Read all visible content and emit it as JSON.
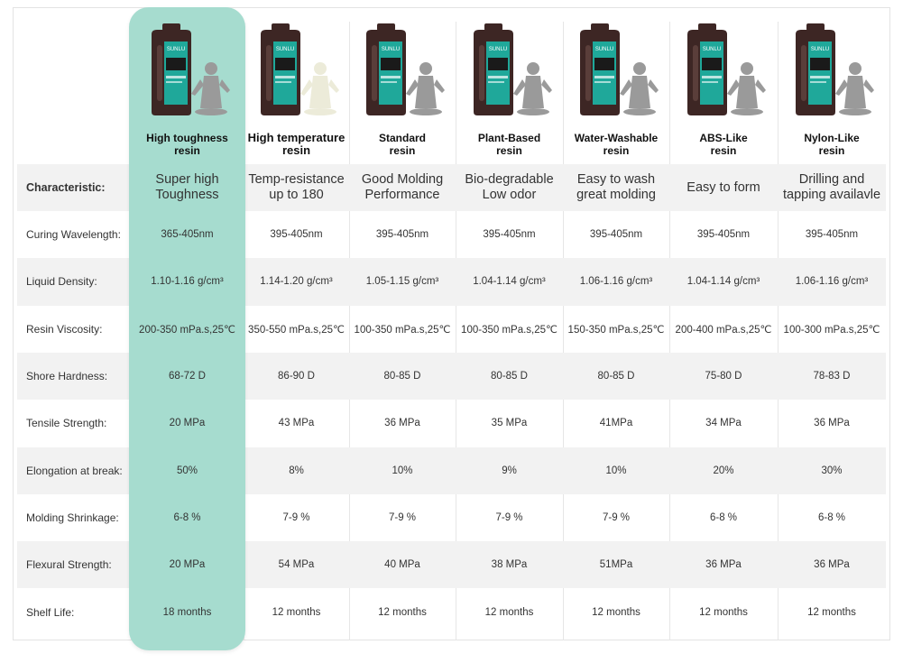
{
  "products": [
    {
      "name": "High toughness\nresin",
      "characteristic": "Super high\nToughness",
      "highlighted": true
    },
    {
      "name": "High temperature\nresin",
      "characteristic": "Temp-resistance\nup to 180"
    },
    {
      "name": "Standard\nresin",
      "characteristic": "Good Molding\nPerformance"
    },
    {
      "name": "Plant-Based\nresin",
      "characteristic": "Bio-degradable\nLow odor"
    },
    {
      "name": "Water-Washable\nresin",
      "characteristic": "Easy to wash\ngreat molding"
    },
    {
      "name": "ABS-Like\nresin",
      "characteristic": "Easy to form"
    },
    {
      "name": "Nylon-Like\nresin",
      "characteristic": "Drilling and\ntapping availavle"
    }
  ],
  "characteristic_label": "Characteristic:",
  "bottle_brand": "SUNLU",
  "rows": [
    {
      "label": "Curing Wavelength:",
      "values": [
        "365-405nm",
        "395-405nm",
        "395-405nm",
        "395-405nm",
        "395-405nm",
        "395-405nm",
        "395-405nm"
      ]
    },
    {
      "label": "Liquid Density:",
      "values": [
        "1.10-1.16 g/cm³",
        "1.14-1.20 g/cm³",
        "1.05-1.15 g/cm³",
        "1.04-1.14 g/cm³",
        "1.06-1.16 g/cm³",
        "1.04-1.14 g/cm³",
        "1.06-1.16 g/cm³"
      ]
    },
    {
      "label": "Resin Viscosity:",
      "values": [
        "200-350 mPa.s,25℃",
        "350-550 mPa.s,25℃",
        "100-350 mPa.s,25℃",
        "100-350 mPa.s,25℃",
        "150-350 mPa.s,25℃",
        "200-400 mPa.s,25℃",
        "100-300 mPa.s,25℃"
      ]
    },
    {
      "label": "Shore Hardness:",
      "values": [
        "68-72 D",
        "86-90 D",
        "80-85 D",
        "80-85 D",
        "80-85 D",
        "75-80 D",
        "78-83 D"
      ]
    },
    {
      "label": "Tensile Strength:",
      "values": [
        "20 MPa",
        "43 MPa",
        "36 MPa",
        "35 MPa",
        "41MPa",
        "34 MPa",
        "36 MPa"
      ]
    },
    {
      "label": "Elongation at break:",
      "values": [
        "50%",
        "8%",
        "10%",
        "9%",
        "10%",
        "20%",
        "30%"
      ]
    },
    {
      "label": "Molding Shrinkage:",
      "values": [
        "6-8 %",
        "7-9 %",
        "7-9 %",
        "7-9 %",
        "7-9 %",
        "6-8 %",
        "6-8 %"
      ]
    },
    {
      "label": "Flexural Strength:",
      "values": [
        "20 MPa",
        "54 MPa",
        "40 MPa",
        "38 MPa",
        "51MPa",
        "36 MPa",
        "36 MPa"
      ]
    },
    {
      "label": "Shelf Life:",
      "values": [
        "18 months",
        "12 months",
        "12 months",
        "12 months",
        "12 months",
        "12 months",
        "12 months"
      ]
    }
  ],
  "colors": {
    "highlight": "#a6dccf",
    "band": "#f2f2f2",
    "bottle": "#3d2624",
    "label_teal": "#1fa89a",
    "figure": "#9a9a9a",
    "figure_light": "#ecebd9"
  }
}
